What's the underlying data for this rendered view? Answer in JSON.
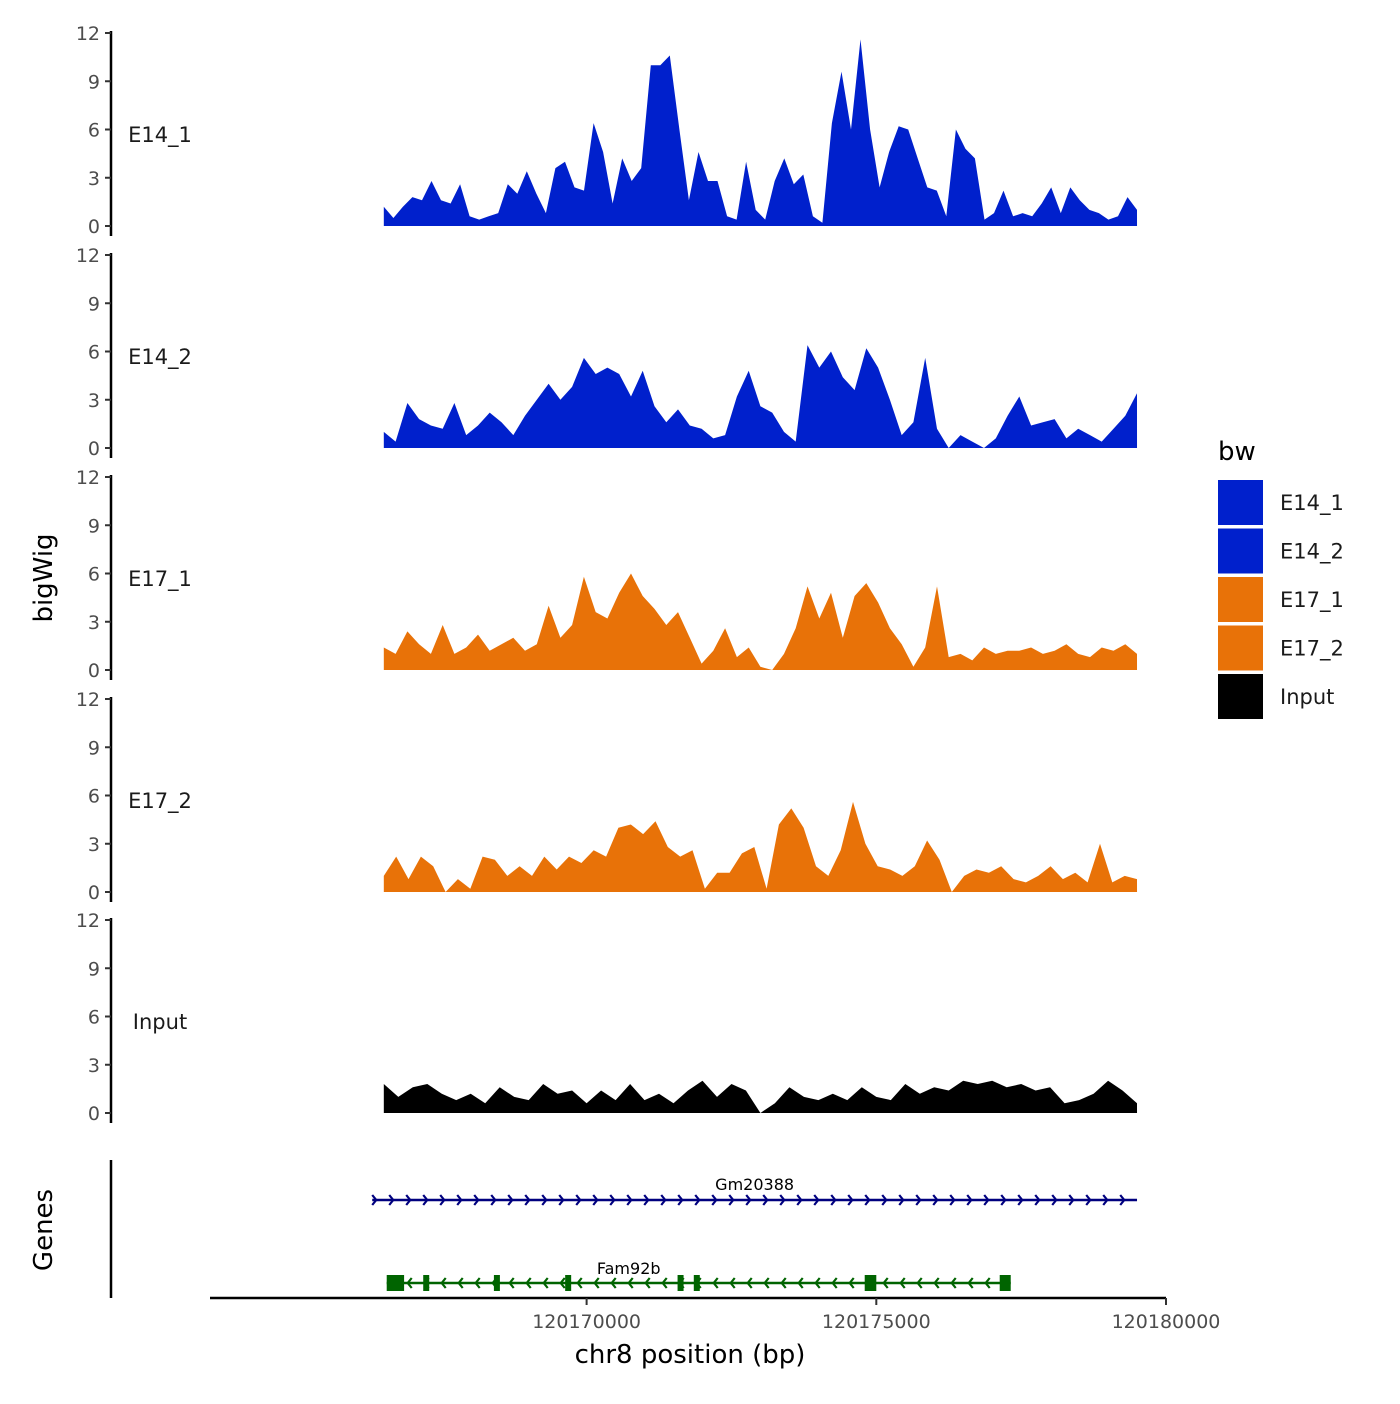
{
  "chart_data": {
    "type": "area",
    "title": "",
    "xlabel": "chr8 position (bp)",
    "ylabel": "bigWig",
    "genes_label": "Genes",
    "xlim": [
      120163500,
      120180000
    ],
    "x_range_data": [
      120166500,
      120179500
    ],
    "ylim": [
      0,
      12
    ],
    "yticks": [
      "0",
      "3",
      "6",
      "9",
      "12"
    ],
    "xticks": [
      {
        "value": 120170000,
        "label": "120170000"
      },
      {
        "value": 120175000,
        "label": "120175000"
      },
      {
        "value": 120180000,
        "label": "120180000"
      }
    ],
    "legend": {
      "title": "bw",
      "position": "right",
      "entries": [
        {
          "label": "E14_1",
          "color": "#0020CC"
        },
        {
          "label": "E14_2",
          "color": "#0020CC"
        },
        {
          "label": "E17_1",
          "color": "#E87208"
        },
        {
          "label": "E17_2",
          "color": "#E87208"
        },
        {
          "label": "Input",
          "color": "#000000"
        }
      ]
    },
    "series": [
      {
        "name": "E14_1",
        "color": "#0020CC",
        "values": [
          1.2,
          0.5,
          1.2,
          1.8,
          1.6,
          2.8,
          1.6,
          1.4,
          2.6,
          0.6,
          0.4,
          0.6,
          0.8,
          2.6,
          2.0,
          3.4,
          2.0,
          0.8,
          3.6,
          4.0,
          2.4,
          2.2,
          6.4,
          4.6,
          1.4,
          4.2,
          2.8,
          3.6,
          10.0,
          10.0,
          10.6,
          6.0,
          1.6,
          4.6,
          2.8,
          2.8,
          0.6,
          0.4,
          4.0,
          1.0,
          0.4,
          2.8,
          4.2,
          2.6,
          3.2,
          0.6,
          0.2,
          6.4,
          9.6,
          6.0,
          11.6,
          6.0,
          2.4,
          4.6,
          6.2,
          6.0,
          4.2,
          2.4,
          2.2,
          0.6,
          6.0,
          4.8,
          4.2,
          0.4,
          0.8,
          2.2,
          0.6,
          0.8,
          0.6,
          1.4,
          2.4,
          0.8,
          2.4,
          1.6,
          1.0,
          0.8,
          0.4,
          0.6,
          1.8,
          1.0
        ]
      },
      {
        "name": "E14_2",
        "color": "#0020CC",
        "values": [
          1.0,
          0.4,
          2.8,
          1.8,
          1.4,
          1.2,
          2.8,
          0.8,
          1.4,
          2.2,
          1.6,
          0.8,
          2.0,
          3.0,
          4.0,
          3.0,
          3.8,
          5.6,
          4.6,
          5.0,
          4.6,
          3.2,
          4.8,
          2.6,
          1.6,
          2.4,
          1.4,
          1.2,
          0.6,
          0.8,
          3.2,
          4.8,
          2.6,
          2.2,
          1.0,
          0.4,
          6.4,
          5.0,
          6.0,
          4.4,
          3.6,
          6.2,
          5.0,
          3.0,
          0.8,
          1.6,
          5.6,
          1.2,
          0.0,
          0.8,
          0.4,
          0.0,
          0.6,
          2.0,
          3.2,
          1.4,
          1.6,
          1.8,
          0.6,
          1.2,
          0.8,
          0.4,
          1.2,
          2.0,
          3.4
        ]
      },
      {
        "name": "E17_1",
        "color": "#E87208",
        "values": [
          1.4,
          1.0,
          2.4,
          1.6,
          1.0,
          2.8,
          1.0,
          1.4,
          2.2,
          1.2,
          1.6,
          2.0,
          1.2,
          1.6,
          4.0,
          2.0,
          2.8,
          5.8,
          3.6,
          3.2,
          4.8,
          6.0,
          4.6,
          3.8,
          2.8,
          3.6,
          2.0,
          0.4,
          1.2,
          2.6,
          0.8,
          1.4,
          0.2,
          0.0,
          1.0,
          2.6,
          5.2,
          3.2,
          4.8,
          2.0,
          4.6,
          5.4,
          4.2,
          2.6,
          1.6,
          0.2,
          1.4,
          5.2,
          0.8,
          1.0,
          0.6,
          1.4,
          1.0,
          1.2,
          1.2,
          1.4,
          1.0,
          1.2,
          1.6,
          1.0,
          0.8,
          1.4,
          1.2,
          1.6,
          1.0
        ]
      },
      {
        "name": "E17_2",
        "color": "#E87208",
        "values": [
          1.0,
          2.2,
          0.8,
          2.2,
          1.6,
          0.0,
          0.8,
          0.2,
          2.2,
          2.0,
          1.0,
          1.6,
          1.0,
          2.2,
          1.4,
          2.2,
          1.8,
          2.6,
          2.2,
          4.0,
          4.2,
          3.6,
          4.4,
          2.8,
          2.2,
          2.6,
          0.2,
          1.2,
          1.2,
          2.4,
          2.8,
          0.2,
          4.2,
          5.2,
          4.0,
          1.6,
          1.0,
          2.6,
          5.6,
          3.0,
          1.6,
          1.4,
          1.0,
          1.6,
          3.2,
          2.0,
          0.0,
          1.0,
          1.4,
          1.2,
          1.6,
          0.8,
          0.6,
          1.0,
          1.6,
          0.8,
          1.2,
          0.6,
          3.0,
          0.6,
          1.0,
          0.8
        ]
      },
      {
        "name": "Input",
        "color": "#000000",
        "values": [
          1.8,
          1.0,
          1.6,
          1.8,
          1.2,
          0.8,
          1.2,
          0.6,
          1.6,
          1.0,
          0.8,
          1.8,
          1.2,
          1.4,
          0.6,
          1.4,
          0.8,
          1.8,
          0.8,
          1.2,
          0.6,
          1.4,
          2.0,
          1.0,
          1.8,
          1.4,
          0.0,
          0.6,
          1.6,
          1.0,
          0.8,
          1.2,
          0.8,
          1.6,
          1.0,
          0.8,
          1.8,
          1.2,
          1.6,
          1.4,
          2.0,
          1.8,
          2.0,
          1.6,
          1.8,
          1.4,
          1.6,
          0.6,
          0.8,
          1.2,
          2.0,
          1.4,
          0.6
        ]
      }
    ],
    "genes": [
      {
        "name": "Gm20388",
        "color": "#00007F",
        "strand": "+",
        "start": 120166300,
        "end": 120179500,
        "exons": []
      },
      {
        "name": "Fam92b",
        "color": "#006400",
        "strand": "-",
        "start": 120166550,
        "end": 120177320,
        "exons": [
          [
            120166550,
            120166850
          ],
          [
            120167180,
            120167260
          ],
          [
            120168400,
            120168480
          ],
          [
            120169630,
            120169710
          ],
          [
            120171570,
            120171650
          ],
          [
            120171850,
            120171930
          ],
          [
            120174800,
            120175000
          ],
          [
            120177130,
            120177320
          ]
        ]
      }
    ]
  }
}
